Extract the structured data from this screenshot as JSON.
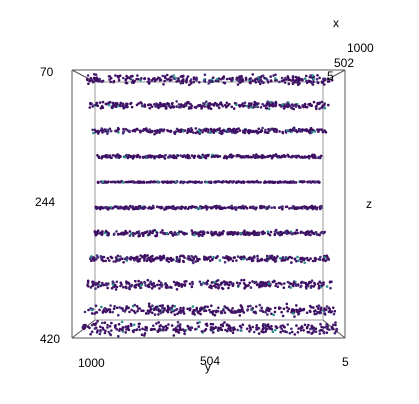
{
  "chart_data": {
    "type": "scatter",
    "projection": "3d",
    "title": "",
    "xlabel": "x",
    "ylabel": "y",
    "zlabel": "z",
    "x_ticks": [
      "1000",
      "502",
      "5"
    ],
    "y_ticks": [
      "1000",
      "504",
      "5"
    ],
    "z_ticks": [
      "70",
      "244",
      "420"
    ],
    "xlim": [
      5,
      1000
    ],
    "ylim": [
      5,
      1000
    ],
    "zlim": [
      70,
      420
    ],
    "z_layers": [
      75,
      110,
      145,
      180,
      215,
      250,
      285,
      320,
      355,
      390,
      415
    ],
    "points_per_layer": 300,
    "colors": {
      "base": "#3f0f63",
      "mid": "#472c7a",
      "accent": "#2a8f8b",
      "box": "#9a9a9a",
      "text": "#000000"
    },
    "grid": false,
    "legend": "none"
  }
}
